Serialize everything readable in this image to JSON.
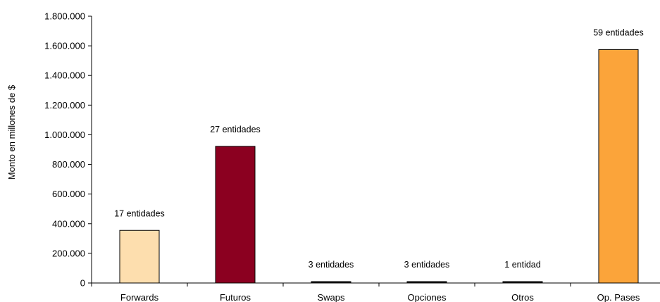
{
  "chart_data": {
    "type": "bar",
    "title": "",
    "xlabel": "",
    "ylabel": "Monto en millones de $",
    "ylim": [
      0,
      1800000
    ],
    "yticks": [
      0,
      200000,
      400000,
      600000,
      800000,
      1000000,
      1200000,
      1400000,
      1600000,
      1800000
    ],
    "ytick_labels": [
      "0",
      "200.000",
      "400.000",
      "600.000",
      "800.000",
      "1.000.000",
      "1.200.000",
      "1.400.000",
      "1.600.000",
      "1.800.000"
    ],
    "categories": [
      "Forwards",
      "Futuros",
      "Swaps",
      "Opciones",
      "Otros",
      "Op. Pases"
    ],
    "values": [
      355000,
      922000,
      6000,
      5000,
      0,
      1575000
    ],
    "data_labels": [
      "17 entidades",
      "27 entidades",
      "3 entidades",
      "3 entidades",
      "1 entidad",
      "59 entidades"
    ],
    "colors": [
      "#FDDEAE",
      "#8B0020",
      "#1a1a1a",
      "#1a1a1a",
      "#1a1a1a",
      "#FBA43A"
    ],
    "grid": false,
    "legend": "none"
  }
}
